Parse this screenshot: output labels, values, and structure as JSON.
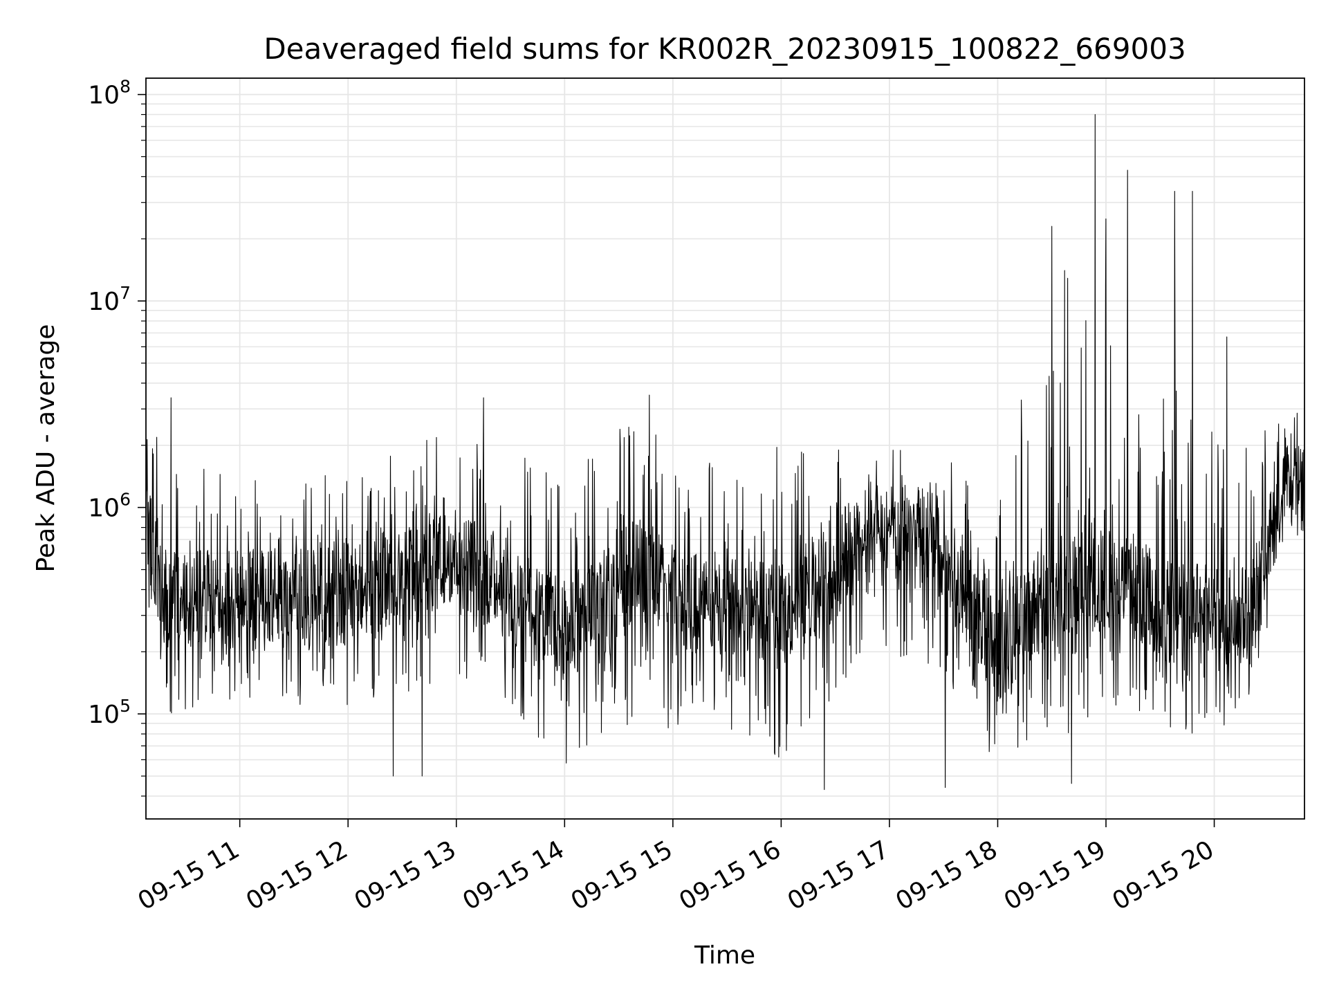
{
  "chart_data": {
    "type": "line",
    "title": "Deaveraged field sums for KR002R_20230915_100822_669003",
    "xlabel": "Time",
    "ylabel": "Peak ADU - average",
    "yscale": "log",
    "ylim": [
      31000,
      120000000
    ],
    "xlim": [
      "2023-09-15 10:08",
      "2023-09-15 20:50"
    ],
    "grid": true,
    "line_color": "#000000",
    "grid_color": "#e6e6e6",
    "x_ticks": [
      {
        "value": "2023-09-15 11:00",
        "label": "09-15 11"
      },
      {
        "value": "2023-09-15 12:00",
        "label": "09-15 12"
      },
      {
        "value": "2023-09-15 13:00",
        "label": "09-15 13"
      },
      {
        "value": "2023-09-15 14:00",
        "label": "09-15 14"
      },
      {
        "value": "2023-09-15 15:00",
        "label": "09-15 15"
      },
      {
        "value": "2023-09-15 16:00",
        "label": "09-15 16"
      },
      {
        "value": "2023-09-15 17:00",
        "label": "09-15 17"
      },
      {
        "value": "2023-09-15 18:00",
        "label": "09-15 18"
      },
      {
        "value": "2023-09-15 19:00",
        "label": "09-15 19"
      },
      {
        "value": "2023-09-15 20:00",
        "label": "09-15 20"
      }
    ],
    "y_ticks": [
      {
        "value": 100000,
        "base": "10",
        "exp": "5"
      },
      {
        "value": 1000000,
        "base": "10",
        "exp": "6"
      },
      {
        "value": 10000000,
        "base": "10",
        "exp": "7"
      },
      {
        "value": 100000000,
        "base": "10",
        "exp": "8"
      }
    ],
    "series_profile": [
      {
        "t": "2023-09-15 10:08",
        "typical": 800000,
        "low": 300000,
        "high": 3000000
      },
      {
        "t": "2023-09-15 10:20",
        "typical": 350000,
        "low": 100000,
        "high": 2000000
      },
      {
        "t": "2023-09-15 11:00",
        "typical": 350000,
        "low": 120000,
        "high": 1500000
      },
      {
        "t": "2023-09-15 12:00",
        "typical": 380000,
        "low": 100000,
        "high": 1500000
      },
      {
        "t": "2023-09-15 13:00",
        "typical": 600000,
        "low": 150000,
        "high": 2500000
      },
      {
        "t": "2023-09-15 14:00",
        "typical": 250000,
        "low": 55000,
        "high": 1500000
      },
      {
        "t": "2023-09-15 14:45",
        "typical": 550000,
        "low": 100000,
        "high": 3000000
      },
      {
        "t": "2023-09-15 15:00",
        "typical": 350000,
        "low": 80000,
        "high": 1500000
      },
      {
        "t": "2023-09-15 16:00",
        "typical": 300000,
        "low": 60000,
        "high": 2000000
      },
      {
        "t": "2023-09-15 16:50",
        "typical": 750000,
        "low": 200000,
        "high": 2000000
      },
      {
        "t": "2023-09-15 17:25",
        "typical": 700000,
        "low": 150000,
        "high": 2000000
      },
      {
        "t": "2023-09-15 18:00",
        "typical": 200000,
        "low": 55000,
        "high": 1000000
      },
      {
        "t": "2023-09-15 18:30",
        "typical": 400000,
        "low": 80000,
        "high": 20000000
      },
      {
        "t": "2023-09-15 19:00",
        "typical": 450000,
        "low": 80000,
        "high": 20000000
      },
      {
        "t": "2023-09-15 19:40",
        "typical": 300000,
        "low": 80000,
        "high": 5000000
      },
      {
        "t": "2023-09-15 20:20",
        "typical": 300000,
        "low": 80000,
        "high": 2000000
      },
      {
        "t": "2023-09-15 20:40",
        "typical": 1300000,
        "low": 800000,
        "high": 3000000
      }
    ],
    "notable_peaks": [
      {
        "t": "2023-09-15 18:54",
        "value": 80000000
      },
      {
        "t": "2023-09-15 19:12",
        "value": 43000000
      },
      {
        "t": "2023-09-15 19:38",
        "value": 34000000
      },
      {
        "t": "2023-09-15 19:48",
        "value": 34000000
      },
      {
        "t": "2023-09-15 19:00",
        "value": 25000000
      },
      {
        "t": "2023-09-15 18:30",
        "value": 23000000
      },
      {
        "t": "2023-09-15 20:07",
        "value": 6700000
      },
      {
        "t": "2023-09-15 18:27",
        "value": 3900000
      },
      {
        "t": "2023-09-15 14:47",
        "value": 3500000
      },
      {
        "t": "2023-09-15 10:22",
        "value": 3400000
      },
      {
        "t": "2023-09-15 13:15",
        "value": 3400000
      }
    ],
    "notable_troughs": [
      {
        "t": "2023-09-15 16:24",
        "value": 43000
      },
      {
        "t": "2023-09-15 17:31",
        "value": 44000
      },
      {
        "t": "2023-09-15 18:41",
        "value": 46000
      },
      {
        "t": "2023-09-15 12:25",
        "value": 50000
      },
      {
        "t": "2023-09-15 12:41",
        "value": 50000
      }
    ]
  }
}
